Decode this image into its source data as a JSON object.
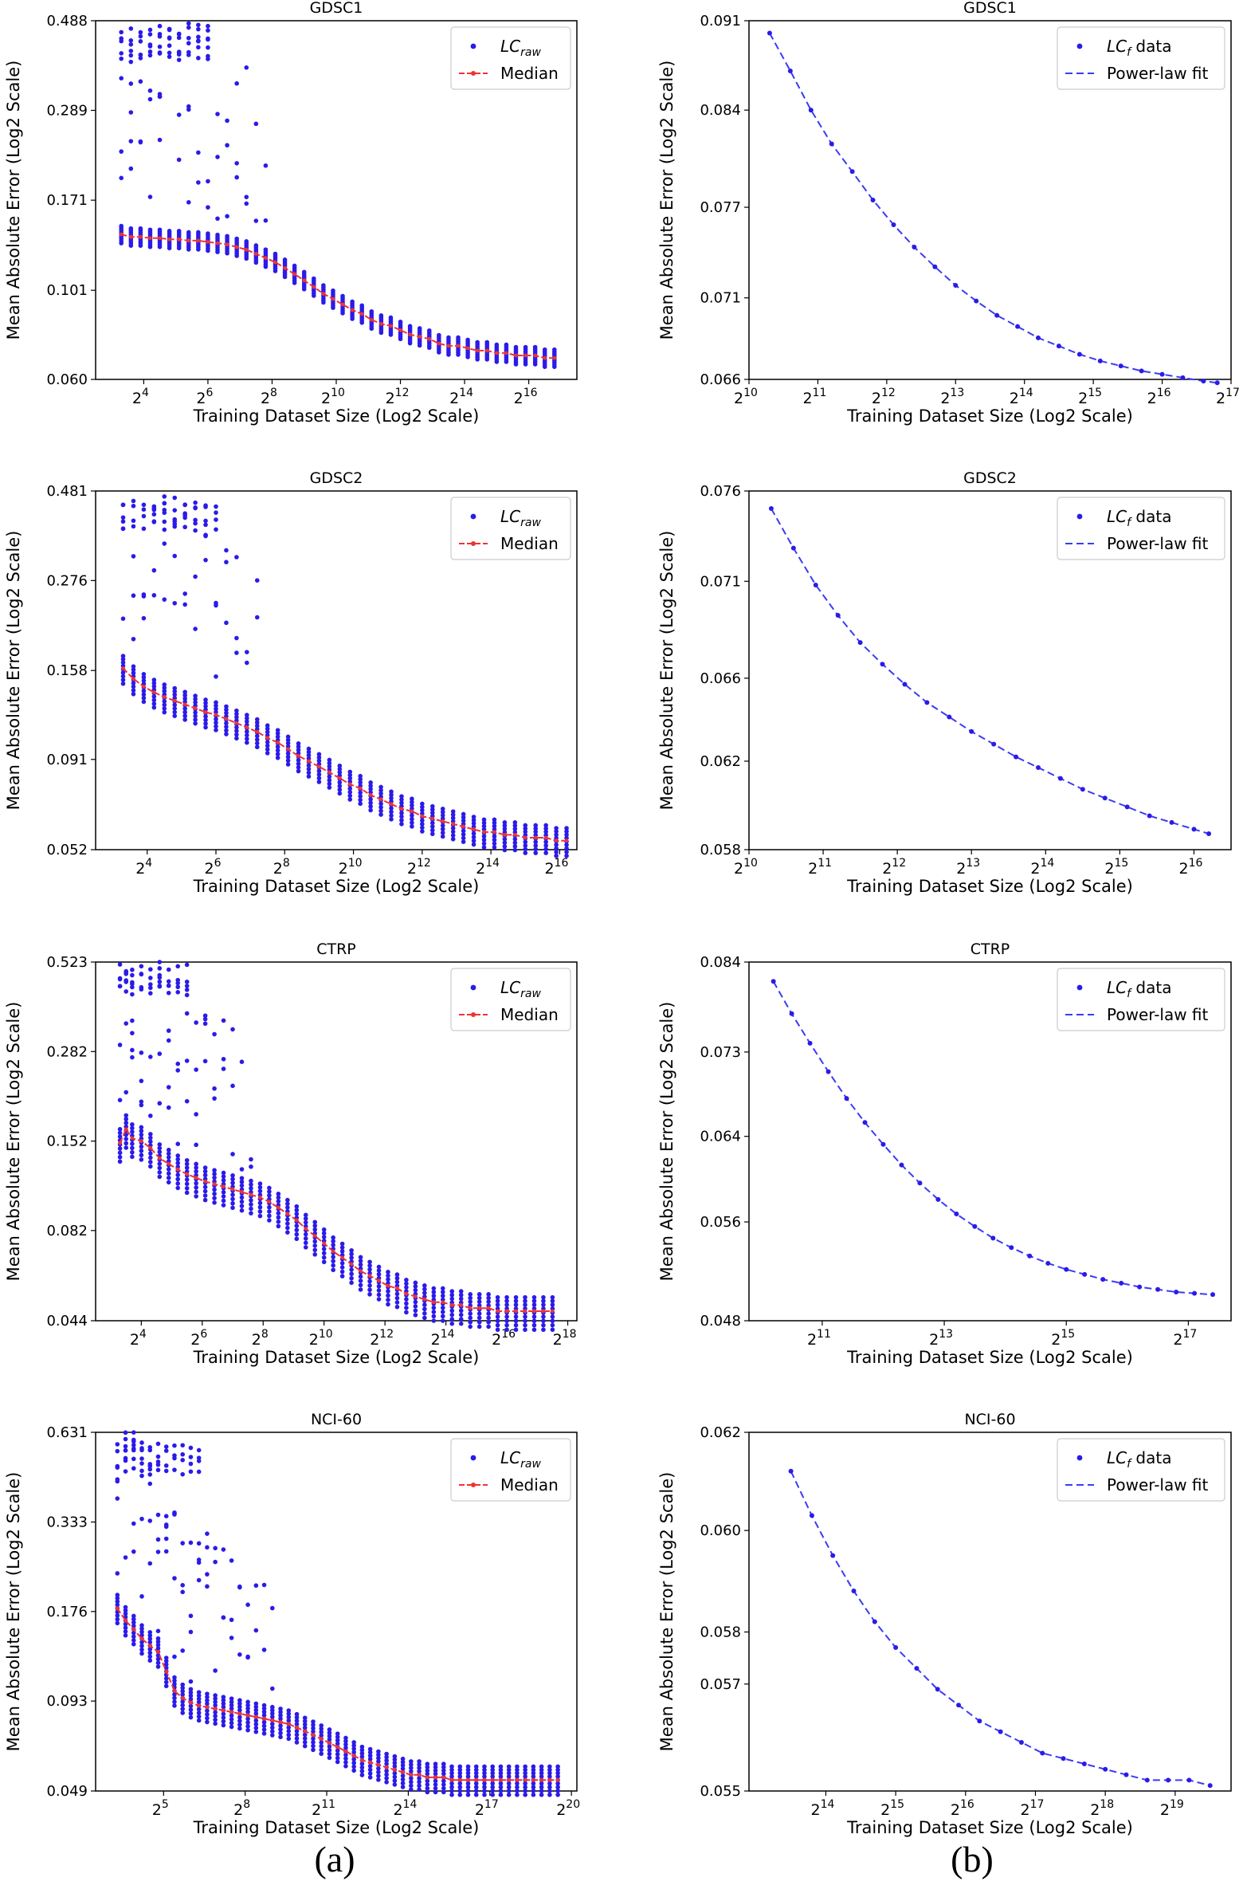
{
  "columns": {
    "left_caption": "(a)",
    "right_caption": "(b)"
  },
  "colors": {
    "points": "#2b1be8",
    "median": "#ee3333",
    "fit": "#3b3bf5",
    "axis": "#000000"
  },
  "chart_data": [
    {
      "type": "scatter",
      "title": "GDSC1",
      "xlabel": "Training Dataset Size (Log2 Scale)",
      "ylabel": "Mean Absolute Error (Log2 Scale)",
      "xscale": "log2",
      "yscale": "log2",
      "xlim_exp": [
        2.5,
        17.5
      ],
      "ylim": [
        0.06,
        0.488
      ],
      "xticks_exp": [
        4,
        6,
        8,
        10,
        12,
        14,
        16
      ],
      "yticks": [
        "0.060",
        "0.101",
        "0.171",
        "0.289",
        "0.488"
      ],
      "legend": [
        "LC_raw",
        "Median"
      ],
      "legend_position": "upper right",
      "x_exp": [
        3.3,
        3.6,
        3.9,
        4.2,
        4.5,
        4.8,
        5.1,
        5.4,
        5.7,
        6.0,
        6.3,
        6.6,
        6.9,
        7.2,
        7.5,
        7.8,
        8.1,
        8.4,
        8.7,
        9.0,
        9.3,
        9.6,
        9.9,
        10.2,
        10.5,
        10.8,
        11.1,
        11.4,
        11.7,
        12.0,
        12.3,
        12.6,
        12.9,
        13.2,
        13.5,
        13.8,
        14.1,
        14.4,
        14.7,
        15.0,
        15.3,
        15.6,
        15.9,
        16.2,
        16.5,
        16.8
      ],
      "median": [
        0.14,
        0.138,
        0.138,
        0.137,
        0.137,
        0.136,
        0.136,
        0.135,
        0.135,
        0.134,
        0.133,
        0.132,
        0.13,
        0.128,
        0.125,
        0.122,
        0.119,
        0.115,
        0.111,
        0.107,
        0.103,
        0.099,
        0.096,
        0.093,
        0.09,
        0.088,
        0.085,
        0.083,
        0.082,
        0.08,
        0.078,
        0.077,
        0.076,
        0.074,
        0.073,
        0.073,
        0.072,
        0.071,
        0.071,
        0.07,
        0.07,
        0.069,
        0.069,
        0.069,
        0.068,
        0.068
      ],
      "spread_lo": 0.95,
      "spread_hi": 1.05,
      "outlier_end_exp": 7.8,
      "high_cluster": {
        "x_range_exp": [
          3.3,
          6.0
        ],
        "values": [
          0.46,
          0.44,
          0.43,
          0.41,
          0.4
        ]
      }
    },
    {
      "type": "line",
      "title": "GDSC1",
      "xlabel": "Training Dataset Size (Log2 Scale)",
      "ylabel": "Mean Absolute Error (Log2 Scale)",
      "xscale": "log2",
      "yscale": "log2",
      "xlim_exp": [
        10.0,
        17.0
      ],
      "ylim": [
        0.066,
        0.091
      ],
      "xticks_exp": [
        10,
        11,
        12,
        13,
        14,
        15,
        16,
        17
      ],
      "yticks": [
        "0.066",
        "0.071",
        "0.077",
        "0.084",
        "0.091"
      ],
      "legend": [
        "LC_f data",
        "Power-law fit"
      ],
      "legend_position": "upper right",
      "x_exp": [
        10.3,
        10.6,
        10.9,
        11.2,
        11.5,
        11.8,
        12.1,
        12.4,
        12.7,
        13.0,
        13.3,
        13.6,
        13.9,
        14.2,
        14.5,
        14.8,
        15.1,
        15.4,
        15.7,
        16.0,
        16.3,
        16.6,
        16.8
      ],
      "values": [
        0.09,
        0.087,
        0.084,
        0.0815,
        0.0795,
        0.0775,
        0.0758,
        0.0743,
        0.073,
        0.0718,
        0.0708,
        0.0699,
        0.0692,
        0.0685,
        0.068,
        0.0675,
        0.0671,
        0.0668,
        0.0665,
        0.0663,
        0.0661,
        0.0659,
        0.0658
      ]
    },
    {
      "type": "scatter",
      "title": "GDSC2",
      "xlabel": "Training Dataset Size (Log2 Scale)",
      "ylabel": "Mean Absolute Error (Log2 Scale)",
      "xscale": "log2",
      "yscale": "log2",
      "xlim_exp": [
        2.5,
        16.5
      ],
      "ylim": [
        0.052,
        0.481
      ],
      "xticks_exp": [
        4,
        6,
        8,
        10,
        12,
        14,
        16
      ],
      "yticks": [
        "0.052",
        "0.091",
        "0.158",
        "0.276",
        "0.481"
      ],
      "legend": [
        "LC_raw",
        "Median"
      ],
      "legend_position": "upper right",
      "x_exp": [
        3.3,
        3.6,
        3.9,
        4.2,
        4.5,
        4.8,
        5.1,
        5.4,
        5.7,
        6.0,
        6.3,
        6.6,
        6.9,
        7.2,
        7.5,
        7.8,
        8.1,
        8.4,
        8.7,
        9.0,
        9.3,
        9.6,
        9.9,
        10.2,
        10.5,
        10.8,
        11.1,
        11.4,
        11.7,
        12.0,
        12.3,
        12.6,
        12.9,
        13.2,
        13.5,
        13.8,
        14.1,
        14.4,
        14.7,
        15.0,
        15.3,
        15.6,
        15.9,
        16.2
      ],
      "median": [
        0.16,
        0.15,
        0.143,
        0.138,
        0.134,
        0.131,
        0.128,
        0.125,
        0.122,
        0.12,
        0.117,
        0.114,
        0.111,
        0.108,
        0.104,
        0.101,
        0.097,
        0.093,
        0.09,
        0.087,
        0.084,
        0.081,
        0.078,
        0.076,
        0.073,
        0.071,
        0.069,
        0.067,
        0.066,
        0.064,
        0.063,
        0.062,
        0.061,
        0.06,
        0.059,
        0.058,
        0.058,
        0.057,
        0.057,
        0.056,
        0.056,
        0.056,
        0.055,
        0.055
      ],
      "spread_lo": 0.91,
      "spread_hi": 1.08,
      "outlier_end_exp": 7.2,
      "high_cluster": {
        "x_range_exp": [
          3.3,
          6.0
        ],
        "values": [
          0.45,
          0.43,
          0.41,
          0.39
        ]
      }
    },
    {
      "type": "line",
      "title": "GDSC2",
      "xlabel": "Training Dataset Size (Log2 Scale)",
      "ylabel": "Mean Absolute Error (Log2 Scale)",
      "xscale": "log2",
      "yscale": "log2",
      "xlim_exp": [
        10.0,
        16.5
      ],
      "ylim": [
        0.058,
        0.076
      ],
      "xticks_exp": [
        10,
        11,
        12,
        13,
        14,
        15,
        16
      ],
      "yticks": [
        "0.058",
        "0.062",
        "0.066",
        "0.071",
        "0.076"
      ],
      "legend": [
        "LC_f data",
        "Power-law fit"
      ],
      "legend_position": "upper right",
      "x_exp": [
        10.3,
        10.6,
        10.9,
        11.2,
        11.5,
        11.8,
        12.1,
        12.4,
        12.7,
        13.0,
        13.3,
        13.6,
        13.9,
        14.2,
        14.5,
        14.8,
        15.1,
        15.4,
        15.7,
        16.0,
        16.2
      ],
      "values": [
        0.075,
        0.0728,
        0.0708,
        0.0692,
        0.0678,
        0.0667,
        0.0657,
        0.0648,
        0.0641,
        0.0634,
        0.0628,
        0.0622,
        0.0617,
        0.0612,
        0.0607,
        0.0603,
        0.0599,
        0.0595,
        0.0592,
        0.0589,
        0.0587
      ]
    },
    {
      "type": "scatter",
      "title": "CTRP",
      "xlabel": "Training Dataset Size (Log2 Scale)",
      "ylabel": "Mean Absolute Error (Log2 Scale)",
      "xscale": "log2",
      "yscale": "log2",
      "xlim_exp": [
        2.5,
        18.3
      ],
      "ylim": [
        0.044,
        0.523
      ],
      "xticks_exp": [
        4,
        6,
        8,
        10,
        12,
        14,
        16,
        18
      ],
      "yticks": [
        "0.044",
        "0.082",
        "0.152",
        "0.282",
        "0.523"
      ],
      "legend": [
        "LC_raw",
        "Median"
      ],
      "legend_position": "upper right",
      "x_exp": [
        3.3,
        3.5,
        3.7,
        4.0,
        4.3,
        4.6,
        4.9,
        5.2,
        5.5,
        5.8,
        6.1,
        6.4,
        6.7,
        7.0,
        7.3,
        7.6,
        7.9,
        8.2,
        8.5,
        8.8,
        9.1,
        9.4,
        9.7,
        10.0,
        10.3,
        10.6,
        10.9,
        11.2,
        11.5,
        11.8,
        12.1,
        12.4,
        12.7,
        13.0,
        13.3,
        13.6,
        13.9,
        14.2,
        14.5,
        14.8,
        15.1,
        15.4,
        15.7,
        16.0,
        16.3,
        16.6,
        16.9,
        17.2,
        17.5
      ],
      "median": [
        0.15,
        0.165,
        0.155,
        0.152,
        0.145,
        0.135,
        0.13,
        0.125,
        0.121,
        0.118,
        0.115,
        0.113,
        0.111,
        0.109,
        0.107,
        0.105,
        0.103,
        0.1,
        0.096,
        0.092,
        0.088,
        0.083,
        0.079,
        0.075,
        0.071,
        0.068,
        0.065,
        0.062,
        0.06,
        0.058,
        0.056,
        0.055,
        0.053,
        0.052,
        0.051,
        0.05,
        0.05,
        0.049,
        0.049,
        0.048,
        0.048,
        0.048,
        0.047,
        0.047,
        0.047,
        0.047,
        0.047,
        0.047,
        0.047
      ],
      "spread_lo": 0.88,
      "spread_hi": 1.1,
      "outlier_end_exp": 7.8,
      "high_cluster": {
        "x_range_exp": [
          3.3,
          5.5
        ],
        "values": [
          0.5,
          0.47,
          0.45,
          0.43
        ]
      }
    },
    {
      "type": "line",
      "title": "CTRP",
      "xlabel": "Training Dataset Size (Log2 Scale)",
      "ylabel": "Mean Absolute Error (Log2 Scale)",
      "xscale": "log2",
      "yscale": "log2",
      "xlim_exp": [
        9.8,
        17.7
      ],
      "ylim": [
        0.048,
        0.084
      ],
      "xticks_exp": [
        11,
        13,
        15,
        17
      ],
      "yticks": [
        "0.048",
        "0.056",
        "0.064",
        "0.073",
        "0.084"
      ],
      "legend": [
        "LC_f data",
        "Power-law fit"
      ],
      "legend_position": "upper right",
      "x_exp": [
        10.2,
        10.5,
        10.8,
        11.1,
        11.4,
        11.7,
        12.0,
        12.3,
        12.6,
        12.9,
        13.2,
        13.5,
        13.8,
        14.1,
        14.4,
        14.7,
        15.0,
        15.3,
        15.6,
        15.9,
        16.2,
        16.5,
        16.8,
        17.1,
        17.4
      ],
      "values": [
        0.0815,
        0.0775,
        0.074,
        0.0708,
        0.0679,
        0.0654,
        0.0632,
        0.0612,
        0.0595,
        0.058,
        0.0567,
        0.0556,
        0.0546,
        0.0538,
        0.0531,
        0.0525,
        0.052,
        0.0516,
        0.0512,
        0.0509,
        0.0506,
        0.0504,
        0.0502,
        0.0501,
        0.05
      ]
    },
    {
      "type": "scatter",
      "title": "NCI-60",
      "xlabel": "Training Dataset Size (Log2 Scale)",
      "ylabel": "Mean Absolute Error (Log2 Scale)",
      "xscale": "log2",
      "yscale": "log2",
      "xlim_exp": [
        2.5,
        20.2
      ],
      "ylim": [
        0.049,
        0.631
      ],
      "xticks_exp": [
        5,
        8,
        11,
        14,
        17,
        20
      ],
      "yticks": [
        "0.049",
        "0.093",
        "0.176",
        "0.333",
        "0.631"
      ],
      "legend": [
        "LC_raw",
        "Median"
      ],
      "legend_position": "upper right",
      "x_exp": [
        3.3,
        3.6,
        3.9,
        4.2,
        4.5,
        4.8,
        5.1,
        5.4,
        5.7,
        6.0,
        6.3,
        6.6,
        6.9,
        7.2,
        7.5,
        7.8,
        8.1,
        8.4,
        8.7,
        9.0,
        9.3,
        9.6,
        9.9,
        10.2,
        10.5,
        10.8,
        11.1,
        11.4,
        11.7,
        12.0,
        12.3,
        12.6,
        12.9,
        13.2,
        13.5,
        13.8,
        14.1,
        14.4,
        14.7,
        15.0,
        15.3,
        15.6,
        15.9,
        16.2,
        16.5,
        16.8,
        17.1,
        17.4,
        17.7,
        18.0,
        18.3,
        18.6,
        18.9,
        19.2,
        19.5
      ],
      "median": [
        0.18,
        0.165,
        0.155,
        0.145,
        0.138,
        0.132,
        0.115,
        0.1,
        0.095,
        0.092,
        0.09,
        0.089,
        0.088,
        0.087,
        0.086,
        0.085,
        0.084,
        0.083,
        0.082,
        0.081,
        0.08,
        0.079,
        0.077,
        0.075,
        0.073,
        0.071,
        0.069,
        0.067,
        0.065,
        0.063,
        0.061,
        0.06,
        0.059,
        0.058,
        0.057,
        0.056,
        0.055,
        0.055,
        0.054,
        0.054,
        0.054,
        0.053,
        0.053,
        0.053,
        0.053,
        0.053,
        0.053,
        0.053,
        0.053,
        0.053,
        0.053,
        0.053,
        0.053,
        0.053,
        0.053
      ],
      "spread_lo": 0.9,
      "spread_hi": 1.1,
      "outlier_end_exp": 9.0,
      "high_cluster": {
        "x_range_exp": [
          3.3,
          6.5
        ],
        "values": [
          0.57,
          0.54,
          0.51,
          0.48
        ]
      }
    },
    {
      "type": "line",
      "title": "NCI-60",
      "xlabel": "Training Dataset Size (Log2 Scale)",
      "ylabel": "Mean Absolute Error (Log2 Scale)",
      "xscale": "log2",
      "yscale": "log2",
      "xlim_exp": [
        12.9,
        19.8
      ],
      "ylim": [
        0.055,
        0.062
      ],
      "xticks_exp": [
        14,
        15,
        16,
        17,
        18,
        19
      ],
      "yticks": [
        "0.055",
        "0.057",
        "0.058",
        "0.060",
        "0.062"
      ],
      "legend": [
        "LC_f data",
        "Power-law fit"
      ],
      "legend_position": "upper right",
      "x_exp": [
        13.5,
        13.8,
        14.1,
        14.4,
        14.7,
        15.0,
        15.3,
        15.6,
        15.9,
        16.2,
        16.5,
        16.8,
        17.1,
        17.4,
        17.7,
        18.0,
        18.3,
        18.6,
        18.9,
        19.2,
        19.5
      ],
      "values": [
        0.0612,
        0.0603,
        0.0595,
        0.0588,
        0.0582,
        0.0577,
        0.0573,
        0.0569,
        0.0566,
        0.0563,
        0.0561,
        0.0559,
        0.0557,
        0.0556,
        0.0555,
        0.0554,
        0.0553,
        0.0552,
        0.0552,
        0.0552,
        0.0551
      ]
    }
  ]
}
